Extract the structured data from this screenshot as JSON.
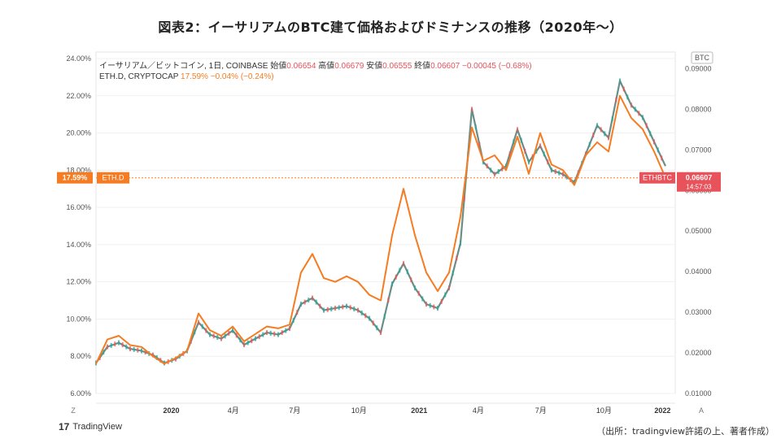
{
  "title": "図表2：イーサリアムのBTC建て価格およびドミナンスの推移（2020年〜）",
  "source": "（出所：tradingview許諾の上、著者作成）",
  "brand": {
    "logo": "17",
    "name": "TradingView"
  },
  "legend": {
    "line1_name": "イーサリアム／ビットコイン, 1日, COINBASE",
    "line1_values": [
      {
        "label": "始値",
        "value": "0.06654"
      },
      {
        "label": "高値",
        "value": "0.06679"
      },
      {
        "label": "安値",
        "value": "0.06555"
      },
      {
        "label": "終値",
        "value": "0.06607"
      }
    ],
    "line1_change": "−0.00045 (−0.68%)",
    "line2_name": "ETH.D, CRYPTOCAP",
    "line2_values": "17.59%  −0.04% (−0.24%)"
  },
  "markers": {
    "left_tag": "17.59%",
    "left_label": "ETH.D",
    "right_label": "ETHBTC",
    "right_price": "0.06607",
    "right_time": "14:57:03",
    "right_currency": "BTC",
    "bottom_left": "Z",
    "bottom_right": "A"
  },
  "colors": {
    "dominance": "#f57c22",
    "candles": "#4f7a72",
    "price_tag": "#e8525b",
    "dom_tag": "#f57c22"
  },
  "chart_data": {
    "type": "line",
    "x_labels": [
      "2020",
      "4月",
      "7月",
      "10月",
      "2021",
      "4月",
      "7月",
      "10月",
      "2022"
    ],
    "left_axis": {
      "ticks": [
        "6.00%",
        "8.00%",
        "10.00%",
        "12.00%",
        "14.00%",
        "16.00%",
        "18.00%",
        "20.00%",
        "22.00%",
        "24.00%"
      ],
      "ylim": [
        6,
        24
      ]
    },
    "right_axis": {
      "ticks": [
        "0.01000",
        "0.02000",
        "0.03000",
        "0.04000",
        "0.05000",
        "0.06000",
        "0.07000",
        "0.08000",
        "0.09000"
      ],
      "ylim": [
        0.01,
        0.0925
      ]
    },
    "series": [
      {
        "name": "ETH.D",
        "axis": "left",
        "x": [
          0,
          0.02,
          0.04,
          0.06,
          0.08,
          0.1,
          0.12,
          0.14,
          0.16,
          0.18,
          0.2,
          0.22,
          0.24,
          0.26,
          0.28,
          0.3,
          0.32,
          0.34,
          0.36,
          0.38,
          0.4,
          0.42,
          0.44,
          0.46,
          0.48,
          0.5,
          0.52,
          0.54,
          0.56,
          0.58,
          0.6,
          0.62,
          0.64,
          0.66,
          0.68,
          0.7,
          0.72,
          0.74,
          0.76,
          0.78,
          0.8,
          0.82,
          0.84,
          0.86,
          0.88,
          0.9,
          0.92,
          0.94,
          0.96,
          0.98,
          1.0
        ],
        "values": [
          7.6,
          8.9,
          9.1,
          8.6,
          8.5,
          8.0,
          7.6,
          7.9,
          8.3,
          10.3,
          9.4,
          9.1,
          9.6,
          8.8,
          9.2,
          9.6,
          9.5,
          9.7,
          12.5,
          13.5,
          12.2,
          12.0,
          12.3,
          12.0,
          11.3,
          11.0,
          14.5,
          17.0,
          14.5,
          12.5,
          11.5,
          12.5,
          15.5,
          20.3,
          18.5,
          18.8,
          18.0,
          19.8,
          17.8,
          20.0,
          18.3,
          18.0,
          17.2,
          18.8,
          19.5,
          19.0,
          22.0,
          20.8,
          20.2,
          19.0,
          17.6
        ]
      },
      {
        "name": "ETHBTC",
        "axis": "right",
        "x": [
          0,
          0.02,
          0.04,
          0.06,
          0.08,
          0.1,
          0.12,
          0.14,
          0.16,
          0.18,
          0.2,
          0.22,
          0.24,
          0.26,
          0.28,
          0.3,
          0.32,
          0.34,
          0.36,
          0.38,
          0.4,
          0.42,
          0.44,
          0.46,
          0.48,
          0.5,
          0.52,
          0.54,
          0.56,
          0.58,
          0.6,
          0.62,
          0.64,
          0.66,
          0.68,
          0.7,
          0.72,
          0.74,
          0.76,
          0.78,
          0.8,
          0.82,
          0.84,
          0.86,
          0.88,
          0.9,
          0.92,
          0.94,
          0.96,
          0.98,
          1.0
        ],
        "values": [
          0.0175,
          0.0215,
          0.0225,
          0.021,
          0.0205,
          0.0195,
          0.0175,
          0.0185,
          0.0205,
          0.0275,
          0.0245,
          0.0235,
          0.0255,
          0.022,
          0.0235,
          0.025,
          0.0245,
          0.026,
          0.032,
          0.0335,
          0.0305,
          0.031,
          0.0315,
          0.0305,
          0.0285,
          0.025,
          0.037,
          0.042,
          0.036,
          0.032,
          0.031,
          0.036,
          0.047,
          0.08,
          0.067,
          0.064,
          0.066,
          0.075,
          0.067,
          0.071,
          0.065,
          0.064,
          0.062,
          0.069,
          0.076,
          0.073,
          0.087,
          0.081,
          0.078,
          0.072,
          0.066
        ]
      }
    ]
  }
}
